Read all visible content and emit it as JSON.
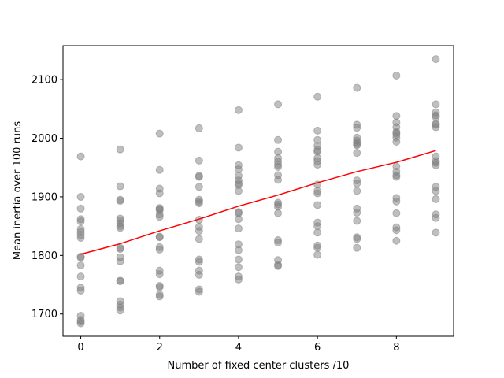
{
  "chart_data": {
    "type": "scatter",
    "title": "",
    "xlabel": "Number of fixed center clusters /10",
    "ylabel": "Mean inertia over 100 runs",
    "xlim": [
      -0.45,
      9.45
    ],
    "ylim": [
      1662,
      2158
    ],
    "xticks": [
      "0",
      "2",
      "4",
      "6",
      "8"
    ],
    "yticks": [
      "1700",
      "1800",
      "1900",
      "2000",
      "2100"
    ],
    "grid": false,
    "legend": "none",
    "colors": {
      "points": "#808080",
      "line": "#ff0000"
    },
    "scatter": [
      {
        "x": 0,
        "y": [
          1969,
          1900,
          1880,
          1862,
          1858,
          1845,
          1840,
          1835,
          1830,
          1798,
          1796,
          1783,
          1764,
          1745,
          1740,
          1697,
          1690,
          1687,
          1684
        ]
      },
      {
        "x": 1,
        "y": [
          1981,
          1918,
          1895,
          1893,
          1863,
          1860,
          1855,
          1850,
          1847,
          1813,
          1811,
          1797,
          1790,
          1757,
          1756,
          1722,
          1716,
          1711,
          1706
        ]
      },
      {
        "x": 2,
        "y": [
          2008,
          1946,
          1914,
          1906,
          1881,
          1879,
          1877,
          1870,
          1866,
          1832,
          1831,
          1814,
          1810,
          1774,
          1768,
          1748,
          1746,
          1733,
          1730
        ]
      },
      {
        "x": 3,
        "y": [
          2017,
          1962,
          1936,
          1934,
          1917,
          1895,
          1892,
          1889,
          1861,
          1849,
          1842,
          1828,
          1793,
          1789,
          1774,
          1767,
          1742,
          1738
        ]
      },
      {
        "x": 4,
        "y": [
          2048,
          1984,
          1954,
          1947,
          1936,
          1928,
          1923,
          1920,
          1910,
          1874,
          1872,
          1862,
          1846,
          1819,
          1809,
          1793,
          1780,
          1764,
          1759
        ]
      },
      {
        "x": 5,
        "y": [
          2058,
          1997,
          1977,
          1966,
          1960,
          1955,
          1951,
          1937,
          1929,
          1890,
          1887,
          1883,
          1872,
          1826,
          1822,
          1792,
          1784,
          1782
        ]
      },
      {
        "x": 6,
        "y": [
          2071,
          2013,
          1997,
          1987,
          1980,
          1977,
          1966,
          1961,
          1955,
          1921,
          1910,
          1906,
          1886,
          1856,
          1850,
          1839,
          1817,
          1813,
          1801
        ]
      },
      {
        "x": 7,
        "y": [
          2086,
          2023,
          2018,
          2001,
          1996,
          1993,
          1990,
          1988,
          1975,
          1928,
          1923,
          1910,
          1880,
          1873,
          1859,
          1831,
          1828,
          1813
        ]
      },
      {
        "x": 8,
        "y": [
          2107,
          2038,
          2027,
          2019,
          2011,
          2009,
          2006,
          2001,
          1994,
          1952,
          1943,
          1937,
          1934,
          1898,
          1892,
          1872,
          1848,
          1843,
          1825
        ]
      },
      {
        "x": 9,
        "y": [
          2135,
          2058,
          2044,
          2039,
          2036,
          2025,
          2023,
          2019,
          1969,
          1961,
          1958,
          1954,
          1917,
          1910,
          1896,
          1870,
          1864,
          1839
        ]
      }
    ],
    "series": [
      {
        "x": [
          0,
          1,
          2,
          3,
          4,
          5,
          6,
          7,
          8,
          9
        ],
        "y": [
          1802,
          1820,
          1842,
          1862,
          1884,
          1903,
          1924,
          1943,
          1959,
          1979
        ]
      }
    ]
  }
}
